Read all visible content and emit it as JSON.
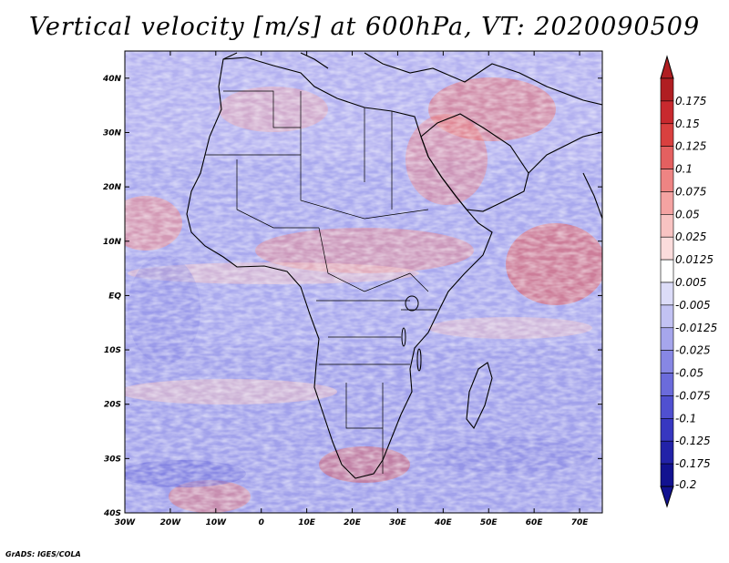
{
  "title": "Vertical velocity [m/s] at 600hPa, VT: 2020090509",
  "credit": "GrADS: IGES/COLA",
  "map": {
    "lon_labels": [
      "30W",
      "20W",
      "10W",
      "0",
      "10E",
      "20E",
      "30E",
      "40E",
      "50E",
      "60E",
      "70E"
    ],
    "lat_labels": [
      "40N",
      "30N",
      "20N",
      "10N",
      "EQ",
      "10S",
      "20S",
      "30S",
      "40S"
    ],
    "lon_range": [
      -30,
      75
    ],
    "lat_range": [
      -40,
      45
    ]
  },
  "colorbar": {
    "labels": [
      "0.175",
      "0.15",
      "0.125",
      "0.1",
      "0.075",
      "0.05",
      "0.025",
      "0.0125",
      "0.005",
      "-0.005",
      "-0.0125",
      "-0.025",
      "-0.05",
      "-0.075",
      "-0.1",
      "-0.125",
      "-0.175",
      "-0.2"
    ],
    "colors": [
      "#b01e22",
      "#c8292e",
      "#d9403f",
      "#e46060",
      "#ee8483",
      "#f4a3a2",
      "#f8c3c2",
      "#fbdcdc",
      "#ffffff",
      "#dcdcf8",
      "#c2c2f3",
      "#a6a6ec",
      "#8787e4",
      "#6b6bdb",
      "#5050d0",
      "#3737c0",
      "#2222a8",
      "#121290"
    ]
  }
}
